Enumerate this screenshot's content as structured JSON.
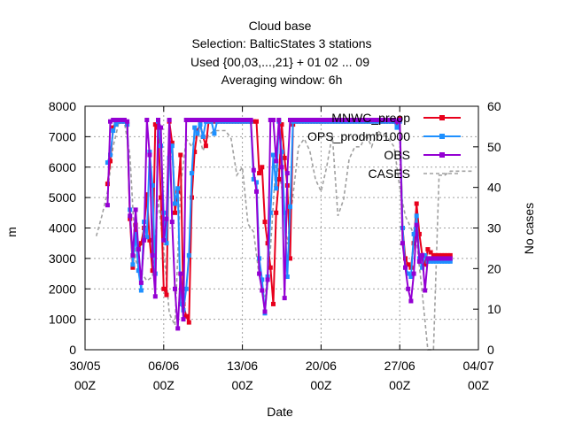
{
  "chart_data": {
    "type": "line",
    "title_lines": [
      "Cloud base",
      "Selection: BalticStates      3 stations",
      "Used {00,03,...,21} + 01 02 ... 09",
      "Averaging window:  6h"
    ],
    "xlabel": "Date",
    "ylabel": "m",
    "y2label": "No cases",
    "x_ticks": [
      {
        "date": "30/05",
        "time": "00Z"
      },
      {
        "date": "06/06",
        "time": "00Z"
      },
      {
        "date": "13/06",
        "time": "00Z"
      },
      {
        "date": "20/06",
        "time": "00Z"
      },
      {
        "date": "27/06",
        "time": "00Z"
      },
      {
        "date": "04/07",
        "time": "00Z"
      }
    ],
    "xlim": [
      "2019-05-30",
      "2019-07-04"
    ],
    "ylim": [
      0,
      8000
    ],
    "y_ticks": [
      0,
      1000,
      2000,
      3000,
      4000,
      5000,
      6000,
      7000,
      8000
    ],
    "y2lim": [
      0,
      60
    ],
    "y2_ticks": [
      0,
      10,
      20,
      30,
      40,
      50,
      60
    ],
    "grid": true,
    "legend_position": "top-right",
    "series": [
      {
        "name": "MNWC_preop",
        "color": "#e8001c",
        "marker": "square",
        "axis": "y",
        "x": [
          2.0,
          2.25,
          2.5,
          2.75,
          3.0,
          3.25,
          3.5,
          3.75,
          4.0,
          4.25,
          4.5,
          4.75,
          5.0,
          5.25,
          5.5,
          5.75,
          6.0,
          6.25,
          6.5,
          6.75,
          7.0,
          7.25,
          7.5,
          7.75,
          8.0,
          8.25,
          8.5,
          8.75,
          9.0,
          9.25,
          9.5,
          9.75,
          10.0,
          10.25,
          10.5,
          10.75,
          11.0,
          11.25,
          11.5,
          11.75,
          12.0,
          12.25,
          12.5,
          12.75,
          13.0,
          13.25,
          13.5,
          13.75,
          14.0,
          14.25,
          14.5,
          14.75,
          15.0,
          15.25,
          15.5,
          15.75,
          16.0,
          16.25,
          16.5,
          16.75,
          17.0,
          17.25,
          17.5,
          17.75,
          18.0,
          18.25,
          18.5,
          18.75,
          19.0,
          19.25,
          19.5,
          19.75,
          20.0,
          20.25,
          20.5,
          20.75,
          21.0,
          21.25,
          21.5,
          21.75,
          22.0,
          22.25,
          22.5,
          22.75,
          23.0,
          23.25,
          23.5,
          23.75,
          24.0,
          24.25,
          24.5,
          24.75,
          25.0,
          25.25,
          25.5,
          25.75,
          26.0,
          26.25,
          26.5,
          26.75,
          27.0,
          27.25,
          27.5,
          27.75,
          28.0,
          28.25,
          28.5,
          28.75,
          29.0,
          29.25,
          29.5,
          29.75,
          30.0,
          30.25,
          30.5,
          30.75,
          31.0,
          31.25,
          31.5,
          31.75,
          32.0,
          32.25,
          32.5
        ],
        "values": [
          5450,
          6200,
          7300,
          7500,
          7500,
          7500,
          7500,
          7400,
          4300,
          2700,
          4100,
          3300,
          3500,
          4000,
          5100,
          3600,
          2600,
          7400,
          7300,
          5000,
          2000,
          1800,
          7500,
          6800,
          4500,
          5200,
          6400,
          1500,
          1100,
          900,
          5000,
          6500,
          7200,
          7400,
          7000,
          6700,
          7500,
          7500,
          7500,
          7500,
          7500,
          7500,
          7500,
          7500,
          7500,
          7500,
          7500,
          7500,
          7500,
          7500,
          7500,
          7500,
          7500,
          7500,
          5800,
          6000,
          4200,
          3500,
          2700,
          1500,
          4500,
          5600,
          7400,
          6300,
          5400,
          3000,
          7400,
          7500,
          7500,
          7500,
          7500,
          7500,
          7500,
          7500,
          7500,
          7500,
          7500,
          7500,
          7500,
          7500,
          7500,
          7500,
          7500,
          7500,
          7500,
          7500,
          7500,
          7500,
          7500,
          7500,
          7500,
          7500,
          7500,
          7500,
          7500,
          7500,
          7500,
          7500,
          7500,
          7500,
          7500,
          7500,
          7500,
          7400,
          7600,
          4000,
          3000,
          2800,
          2700,
          3500,
          4800,
          3800,
          3100,
          2800,
          3300,
          3200,
          3100,
          3100,
          3100,
          3100,
          3100,
          3100,
          3100
        ]
      },
      {
        "name": "OPS_prodmb1000",
        "color": "#1e90ff",
        "marker": "square",
        "axis": "y",
        "x": [
          2.0,
          2.25,
          2.5,
          2.75,
          3.0,
          3.25,
          3.5,
          3.75,
          4.0,
          4.25,
          4.5,
          4.75,
          5.0,
          5.25,
          5.5,
          5.75,
          6.0,
          6.25,
          6.5,
          6.75,
          7.0,
          7.25,
          7.5,
          7.75,
          8.0,
          8.25,
          8.5,
          8.75,
          9.0,
          9.25,
          9.5,
          9.75,
          10.0,
          10.25,
          10.5,
          10.75,
          11.0,
          11.25,
          11.5,
          11.75,
          12.0,
          12.25,
          12.5,
          12.75,
          13.0,
          13.25,
          13.5,
          13.75,
          14.0,
          14.25,
          14.5,
          14.75,
          15.0,
          15.25,
          15.5,
          15.75,
          16.0,
          16.25,
          16.5,
          16.75,
          17.0,
          17.25,
          17.5,
          17.75,
          18.0,
          18.25,
          18.5,
          18.75,
          19.0,
          19.25,
          19.5,
          19.75,
          20.0,
          20.25,
          20.5,
          20.75,
          21.0,
          21.25,
          21.5,
          21.75,
          22.0,
          22.25,
          22.5,
          22.75,
          23.0,
          23.25,
          23.5,
          23.75,
          24.0,
          24.25,
          24.5,
          24.75,
          25.0,
          25.25,
          25.5,
          25.75,
          26.0,
          26.25,
          26.5,
          26.75,
          27.0,
          27.25,
          27.5,
          27.75,
          28.0,
          28.25,
          28.5,
          28.75,
          29.0,
          29.25,
          29.5,
          29.75,
          30.0,
          30.25,
          30.5,
          30.75,
          31.0,
          31.25,
          31.5,
          31.75,
          32.0,
          32.25,
          32.5
        ],
        "values": [
          6150,
          6400,
          7200,
          7400,
          7500,
          7500,
          7500,
          7400,
          4600,
          2800,
          3800,
          2600,
          1950,
          4200,
          3700,
          6500,
          5400,
          2500,
          7500,
          6700,
          4500,
          3500,
          6300,
          6700,
          4800,
          5300,
          1500,
          1300,
          2000,
          3100,
          5800,
          7300,
          7100,
          7400,
          7000,
          7500,
          7500,
          7500,
          7100,
          7500,
          7500,
          7500,
          7500,
          7500,
          7500,
          7500,
          7500,
          7500,
          7500,
          7500,
          7500,
          7500,
          5600,
          5500,
          3000,
          2300,
          1200,
          2400,
          4500,
          6400,
          5300,
          7500,
          6500,
          4500,
          2400,
          4700,
          7500,
          7500,
          7500,
          7500,
          7500,
          7500,
          7500,
          7500,
          7500,
          7500,
          7500,
          7500,
          7500,
          7500,
          7500,
          7500,
          7500,
          7500,
          7500,
          7500,
          7500,
          7500,
          7500,
          7500,
          7500,
          7500,
          7500,
          7500,
          7500,
          7500,
          7500,
          7500,
          7500,
          7500,
          7500,
          7500,
          7500,
          7300,
          7500,
          4000,
          2700,
          2500,
          2400,
          3800,
          4400,
          3000,
          2700,
          3100,
          2900,
          2900,
          2900,
          2900,
          2900,
          2900,
          2900,
          2900,
          2900
        ]
      },
      {
        "name": "OBS",
        "color": "#9400d3",
        "marker": "square",
        "axis": "y",
        "x": [
          2.0,
          2.25,
          2.5,
          2.75,
          3.0,
          3.25,
          3.5,
          3.75,
          4.0,
          4.25,
          4.5,
          4.75,
          5.0,
          5.25,
          5.5,
          5.75,
          6.0,
          6.25,
          6.5,
          6.75,
          7.0,
          7.25,
          7.5,
          7.75,
          8.0,
          8.25,
          8.5,
          8.75,
          9.0,
          9.25,
          9.5,
          9.75,
          10.0,
          10.25,
          10.5,
          10.75,
          11.0,
          11.25,
          11.5,
          11.75,
          12.0,
          12.25,
          12.5,
          12.75,
          13.0,
          13.25,
          13.5,
          13.75,
          14.0,
          14.25,
          14.5,
          14.75,
          15.0,
          15.25,
          15.5,
          15.75,
          16.0,
          16.25,
          16.5,
          16.75,
          17.0,
          17.25,
          17.5,
          17.75,
          18.0,
          18.25,
          18.5,
          18.75,
          19.0,
          19.25,
          19.5,
          19.75,
          20.0,
          20.25,
          20.5,
          20.75,
          21.0,
          21.25,
          21.5,
          21.75,
          22.0,
          22.25,
          22.5,
          22.75,
          23.0,
          23.25,
          23.5,
          23.75,
          24.0,
          24.25,
          24.5,
          24.75,
          25.0,
          25.25,
          25.5,
          25.75,
          26.0,
          26.25,
          26.5,
          26.75,
          27.0,
          27.25,
          27.5,
          27.75,
          28.0,
          28.25,
          28.5,
          28.75,
          29.0,
          29.25,
          29.5,
          29.75,
          30.0,
          30.25,
          30.5,
          30.75,
          31.0,
          31.25,
          31.5,
          31.75,
          32.0,
          32.25,
          32.5
        ],
        "values": [
          4750,
          7500,
          7550,
          7550,
          7550,
          7550,
          7550,
          7500,
          4400,
          3100,
          4600,
          3300,
          2200,
          3600,
          7550,
          6400,
          3100,
          1750,
          7550,
          7300,
          3600,
          4300,
          7550,
          4200,
          2000,
          700,
          2500,
          1000,
          7550,
          7550,
          7550,
          7550,
          7550,
          7550,
          7550,
          7550,
          7550,
          7550,
          7550,
          7550,
          7550,
          7550,
          7550,
          7550,
          7550,
          7550,
          7550,
          7550,
          7550,
          7550,
          7550,
          7550,
          5900,
          5200,
          2500,
          1950,
          1250,
          2300,
          7550,
          7550,
          6200,
          7550,
          6000,
          1700,
          5800,
          7550,
          7550,
          7550,
          7550,
          7550,
          7550,
          7550,
          7550,
          7550,
          7550,
          7550,
          7550,
          7550,
          7550,
          7550,
          7550,
          7550,
          7550,
          7550,
          7550,
          7550,
          7550,
          7550,
          7550,
          7550,
          7550,
          7550,
          7550,
          7550,
          7550,
          7550,
          7550,
          7550,
          7550,
          7550,
          7550,
          7550,
          7550,
          7500,
          7550,
          3500,
          2700,
          2000,
          1600,
          2500,
          4100,
          2900,
          3100,
          1950,
          3000,
          3000,
          3000,
          3000,
          3000,
          3000,
          3000,
          3000,
          3000
        ]
      },
      {
        "name": "CASES",
        "color": "#a0a0a0",
        "marker": "none",
        "dashed": true,
        "axis": "y2",
        "x": [
          1.0,
          1.5,
          2.0,
          2.5,
          3.0,
          3.5,
          4.0,
          4.5,
          5.0,
          5.5,
          6.0,
          6.5,
          7.0,
          7.5,
          8.0,
          8.5,
          9.0,
          9.5,
          10.0,
          10.5,
          11.0,
          11.5,
          12.0,
          12.5,
          13.0,
          13.5,
          14.0,
          14.5,
          15.0,
          15.5,
          16.0,
          16.5,
          17.0,
          17.5,
          18.0,
          18.5,
          19.0,
          19.5,
          20.0,
          20.5,
          21.0,
          21.5,
          22.0,
          22.5,
          23.0,
          23.5,
          24.0,
          24.5,
          25.0,
          25.5,
          26.0,
          26.5,
          27.0,
          27.5,
          28.0,
          28.5,
          29.0,
          29.5,
          30.0,
          30.5,
          31.0,
          31.5,
          32.0,
          32.5,
          33.0,
          33.5,
          34.0,
          34.5
        ],
        "values": [
          28,
          33,
          39,
          50,
          56,
          56,
          48,
          22,
          19,
          17,
          18,
          37,
          25,
          9,
          6,
          40,
          52,
          50,
          54,
          49,
          53,
          54,
          54,
          54,
          52,
          43,
          45,
          31,
          29,
          18,
          13,
          25,
          47,
          40,
          26,
          38,
          50,
          52,
          49,
          42,
          39,
          45,
          53,
          33,
          37,
          47,
          50,
          50,
          53,
          50,
          54,
          53,
          52,
          50,
          40,
          33,
          30,
          27,
          14,
          0,
          0,
          43,
          43,
          44,
          44,
          44,
          44,
          44
        ]
      }
    ]
  }
}
